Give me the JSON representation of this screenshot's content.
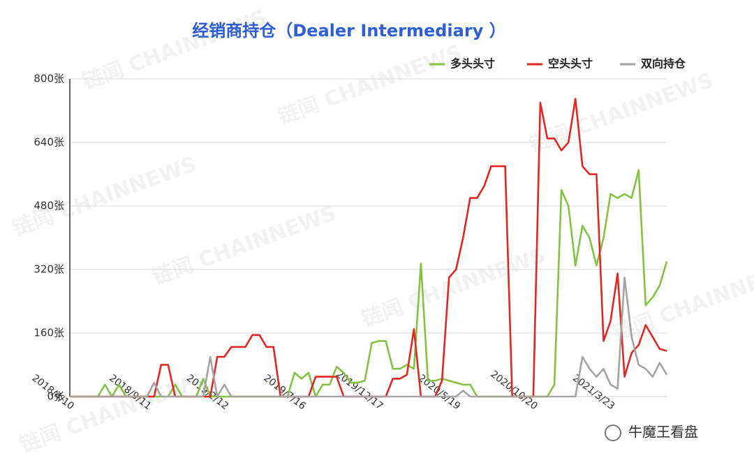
{
  "chart_data": {
    "type": "line",
    "title": "经销商持仓（Dealer Intermediary ）",
    "watermark": "链闻 CHAINNEWS",
    "credit": "牛魔王看盘",
    "categories": [
      "2018/4/10",
      null,
      null,
      null,
      null,
      null,
      null,
      null,
      null,
      null,
      null,
      "2018/9/11",
      null,
      null,
      null,
      null,
      null,
      null,
      null,
      null,
      null,
      null,
      "2019/2/12",
      null,
      null,
      null,
      null,
      null,
      null,
      null,
      null,
      null,
      null,
      "2019/7/16",
      null,
      null,
      null,
      null,
      null,
      null,
      null,
      null,
      null,
      null,
      "2019/12/17",
      null,
      null,
      null,
      null,
      null,
      null,
      null,
      null,
      null,
      null,
      "2020/5/19",
      null,
      null,
      null,
      null,
      null,
      null,
      null,
      null,
      null,
      null,
      "2020/10/20",
      null,
      null,
      null,
      null,
      null,
      null,
      null,
      null,
      null,
      null,
      "2021/3/23",
      null,
      null,
      null,
      null,
      null,
      null,
      null,
      null
    ],
    "series": [
      {
        "name": "多头头寸",
        "color": "#82c341",
        "values": [
          0,
          0,
          0,
          0,
          0,
          30,
          0,
          30,
          0,
          0,
          0,
          0,
          0,
          0,
          0,
          30,
          0,
          0,
          0,
          45,
          0,
          0,
          0,
          0,
          0,
          0,
          0,
          0,
          0,
          0,
          0,
          0,
          60,
          45,
          60,
          0,
          30,
          30,
          75,
          60,
          35,
          35,
          40,
          135,
          140,
          140,
          70,
          70,
          80,
          70,
          335,
          40,
          40,
          45,
          40,
          35,
          30,
          30,
          0,
          0,
          0,
          0,
          0,
          0,
          0,
          0,
          0,
          0,
          0,
          30,
          520,
          480,
          330,
          430,
          400,
          330,
          400,
          510,
          500,
          510,
          500,
          570,
          230,
          250,
          280,
          340
        ]
      },
      {
        "name": "空头头寸",
        "color": "#e52521",
        "values": [
          0,
          0,
          0,
          0,
          0,
          0,
          0,
          0,
          0,
          0,
          0,
          0,
          0,
          80,
          80,
          0,
          0,
          0,
          0,
          0,
          0,
          100,
          100,
          125,
          125,
          125,
          155,
          155,
          125,
          125,
          0,
          0,
          0,
          0,
          0,
          50,
          50,
          50,
          50,
          0,
          0,
          0,
          0,
          0,
          0,
          0,
          45,
          45,
          55,
          170,
          0,
          0,
          0,
          40,
          300,
          320,
          400,
          500,
          500,
          530,
          580,
          580,
          580,
          0,
          0,
          0,
          0,
          740,
          650,
          650,
          620,
          640,
          750,
          580,
          560,
          560,
          140,
          190,
          310,
          50,
          110,
          130,
          180,
          150,
          120,
          115
        ]
      },
      {
        "name": "双向持仓",
        "color": "#a3a3a3",
        "values": [
          0,
          0,
          0,
          0,
          0,
          0,
          0,
          0,
          0,
          0,
          0,
          0,
          35,
          0,
          0,
          0,
          0,
          0,
          0,
          0,
          100,
          0,
          30,
          0,
          0,
          0,
          0,
          0,
          0,
          0,
          0,
          0,
          0,
          0,
          0,
          0,
          0,
          0,
          0,
          0,
          0,
          0,
          0,
          0,
          0,
          0,
          0,
          0,
          0,
          0,
          0,
          0,
          0,
          0,
          0,
          0,
          15,
          0,
          0,
          0,
          0,
          0,
          0,
          0,
          0,
          0,
          0,
          0,
          0,
          0,
          0,
          0,
          0,
          100,
          70,
          50,
          70,
          30,
          20,
          300,
          150,
          80,
          70,
          50,
          85,
          55
        ]
      }
    ],
    "ylim": [
      0,
      800
    ],
    "yticks": [
      {
        "value": 0,
        "label": "0张"
      },
      {
        "value": 160,
        "label": "160张"
      },
      {
        "value": 320,
        "label": "320张"
      },
      {
        "value": 480,
        "label": "480张"
      },
      {
        "value": 640,
        "label": "640张"
      },
      {
        "value": 800,
        "label": "800张"
      }
    ],
    "grid": true
  }
}
